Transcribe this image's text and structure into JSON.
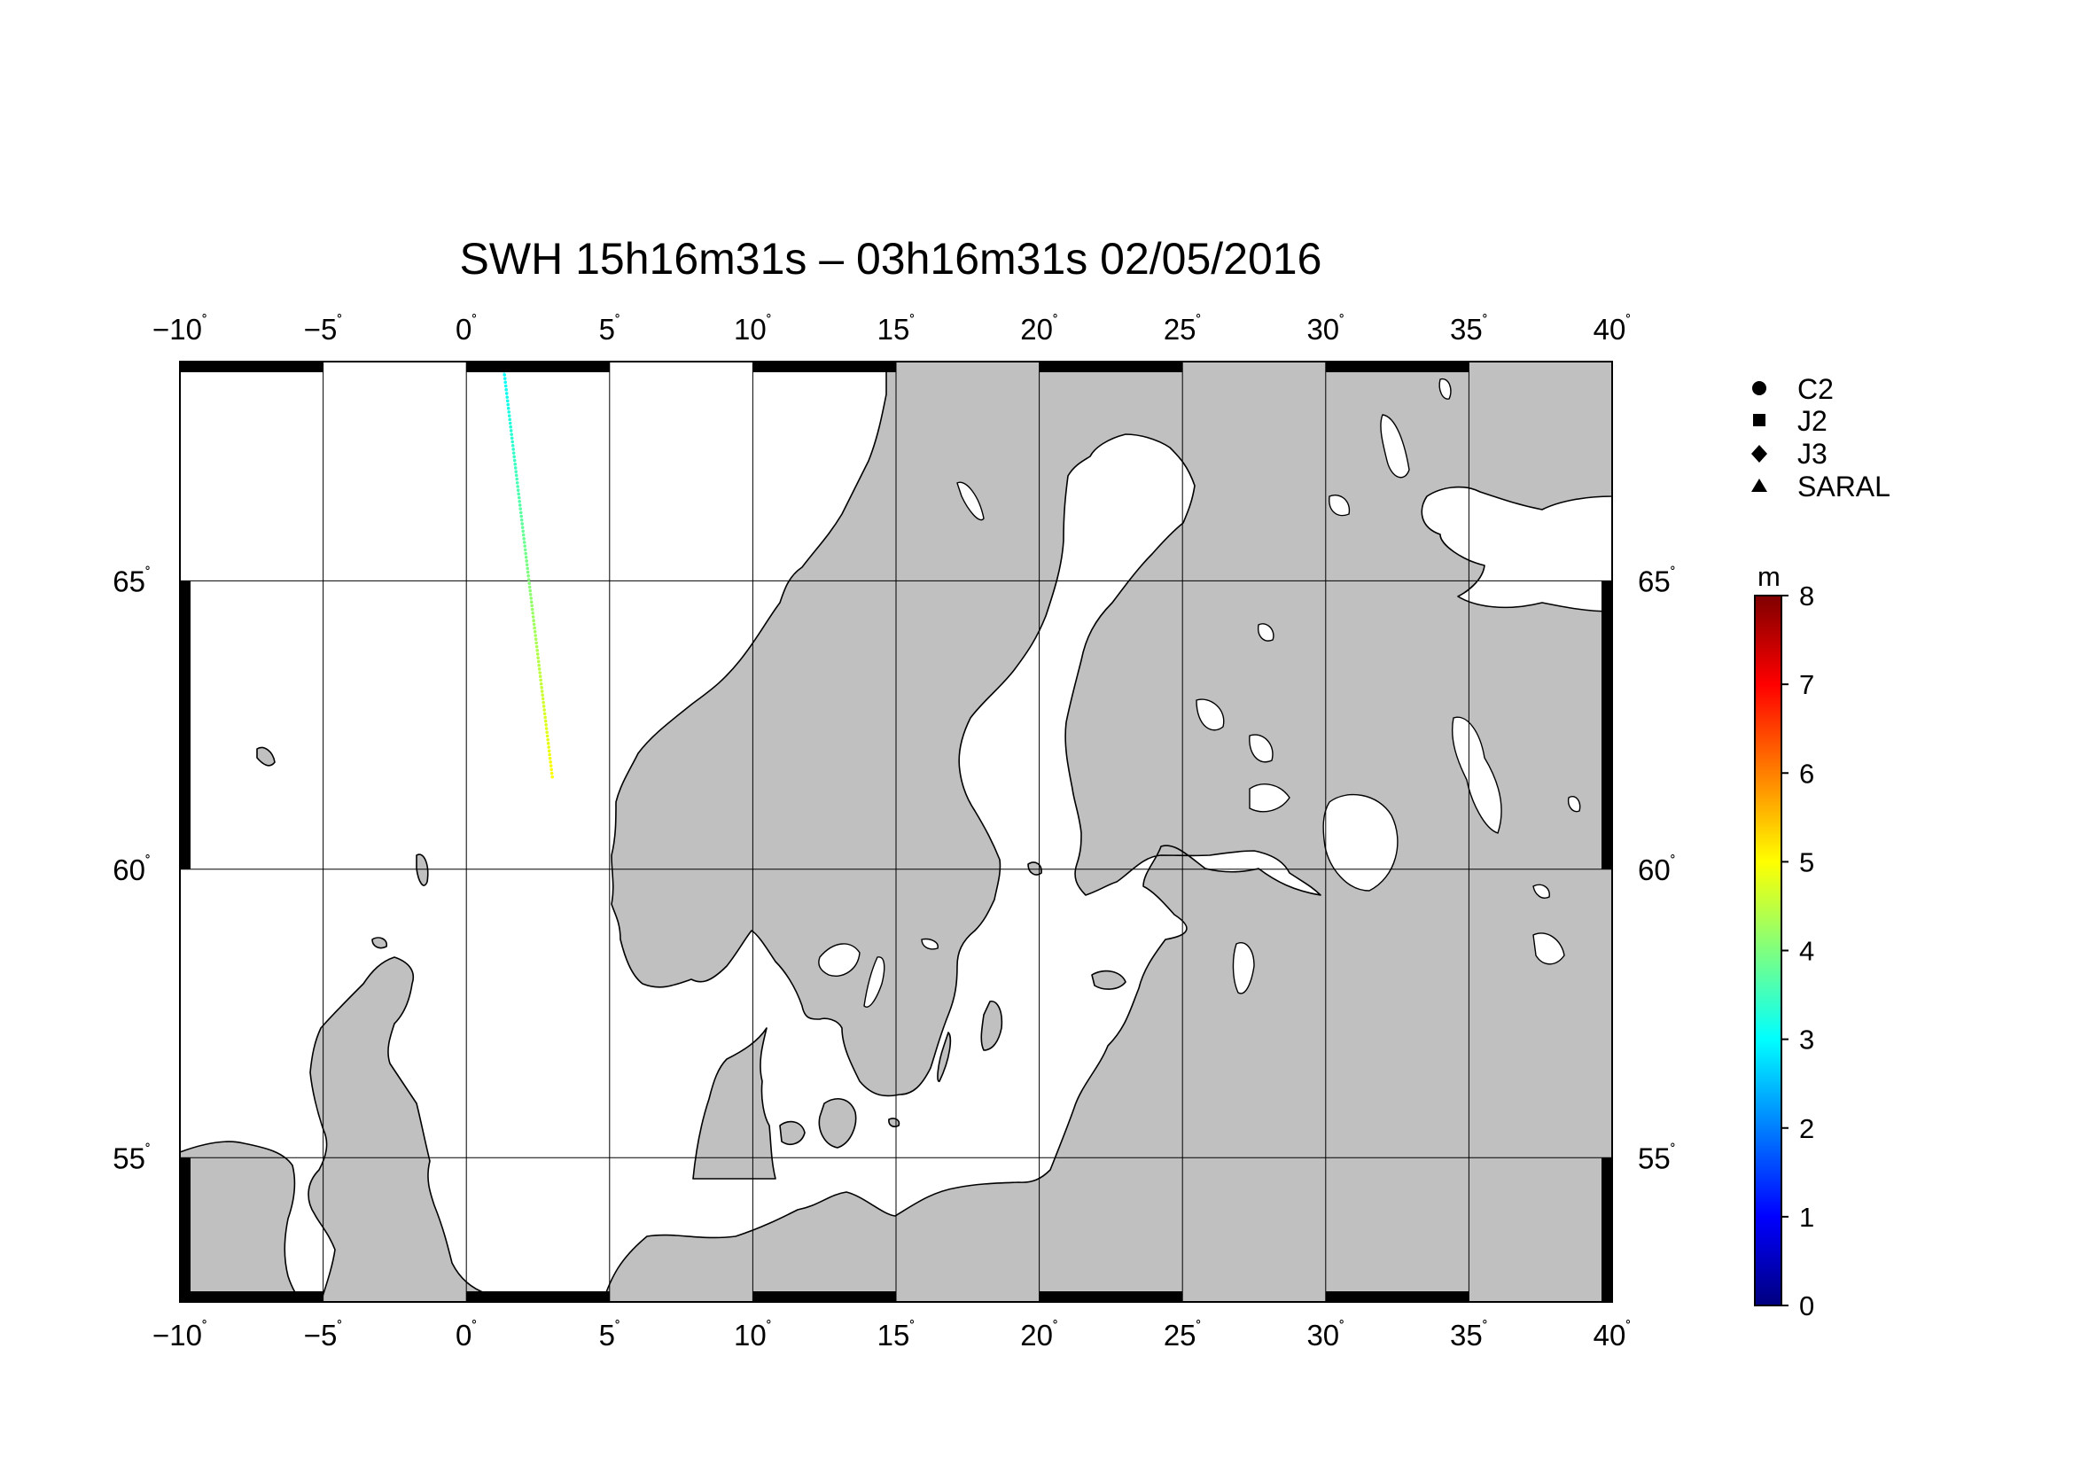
{
  "title": "SWH 15h16m31s – 03h16m31s 02/05/2016",
  "map": {
    "lon_range": [
      -10,
      40
    ],
    "lat_range": [
      52.5,
      68.8
    ],
    "lon_ticks": [
      -10,
      -5,
      0,
      5,
      10,
      15,
      20,
      25,
      30,
      35,
      40
    ],
    "lon_tick_labels": [
      "−10",
      "−5",
      "0",
      "5",
      "10",
      "15",
      "20",
      "25",
      "30",
      "35",
      "40"
    ],
    "lat_ticks": [
      55,
      60,
      65
    ],
    "lat_tick_labels": [
      "55",
      "60",
      "65"
    ],
    "degree_symbol": "˚",
    "land_color": "#c0c0c0",
    "sea_color": "#ffffff",
    "frame_color": "#000000"
  },
  "legend": {
    "items": [
      {
        "label": "C2",
        "marker": "circle"
      },
      {
        "label": "J2",
        "marker": "square"
      },
      {
        "label": "J3",
        "marker": "diamond"
      },
      {
        "label": "SARAL",
        "marker": "triangle"
      }
    ]
  },
  "colorbar": {
    "unit": "m",
    "min": 0,
    "max": 8,
    "tick_labels": [
      "0",
      "1",
      "2",
      "3",
      "4",
      "5",
      "6",
      "7",
      "8"
    ],
    "colors": [
      "#00007f",
      "#0000ff",
      "#007fff",
      "#00ffff",
      "#7fff7f",
      "#ffff00",
      "#ff7f00",
      "#ff0000",
      "#7f0000"
    ]
  },
  "track": {
    "start": {
      "lon": 1.3,
      "lat": 68.7,
      "swh": 3.0
    },
    "end": {
      "lon": 3.0,
      "lat": 61.6,
      "swh": 5.0
    }
  }
}
